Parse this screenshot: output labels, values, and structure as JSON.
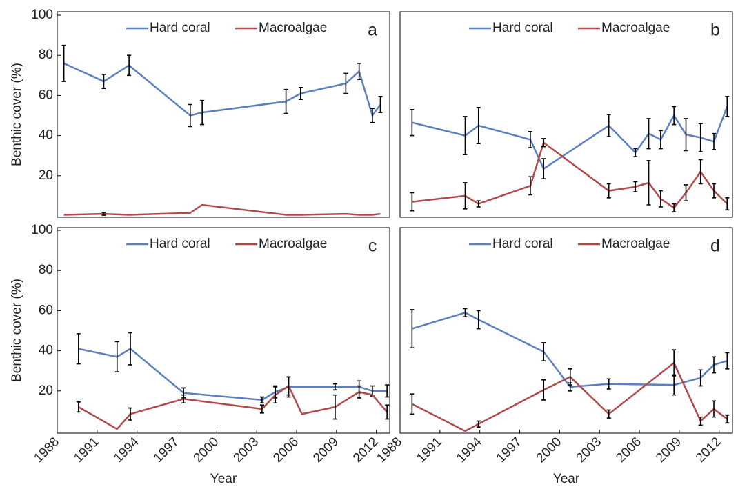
{
  "chart_data": [
    {
      "type": "line",
      "label": "a",
      "ylabel": "Benthic cover (%)",
      "xlim": [
        1988,
        2013
      ],
      "ylim": [
        0,
        100
      ],
      "yticks": [
        20,
        40,
        60,
        80,
        100
      ],
      "x": [
        1988.5,
        1991.5,
        1993.4,
        1998,
        1998.9,
        2005.2,
        2006.3,
        2009.7,
        2010.7,
        2011.7,
        2012.3
      ],
      "series": [
        {
          "name": "Hard coral",
          "color": "#5b7fbf",
          "values": [
            76,
            67,
            75,
            50,
            51.5,
            57,
            61,
            66,
            72,
            50,
            55.5
          ],
          "errors": [
            9,
            3.5,
            5,
            5.5,
            6,
            6,
            3,
            5,
            4,
            3.5,
            4
          ]
        },
        {
          "name": "Macroalgae",
          "color": "#b04a4a",
          "values": [
            0.5,
            1,
            0.5,
            1.5,
            5.5,
            0.5,
            0.5,
            1,
            0.5,
            0.5,
            1
          ],
          "errors": [
            null,
            0.7,
            null,
            null,
            null,
            null,
            null,
            null,
            null,
            null,
            null
          ]
        }
      ]
    },
    {
      "type": "line",
      "label": "b",
      "xlim": [
        1988,
        2013
      ],
      "ylim": [
        0,
        100
      ],
      "x": [
        1988.9,
        1992.9,
        1993.9,
        1997.8,
        1998.8,
        2003.7,
        2005.7,
        2006.7,
        2007.6,
        2008.6,
        2009.5,
        2010.6,
        2011.6,
        2012.6
      ],
      "series": [
        {
          "name": "Hard coral",
          "color": "#5b7fbf",
          "values": [
            46.5,
            40,
            45,
            38,
            23.5,
            45,
            31.5,
            41,
            38,
            50,
            40.5,
            39,
            37,
            54.5
          ],
          "errors": [
            6.5,
            9.5,
            9,
            4,
            5,
            5.5,
            2,
            7.5,
            4.5,
            4.5,
            8,
            7,
            4,
            5
          ]
        },
        {
          "name": "Macroalgae",
          "color": "#b04a4a",
          "values": [
            7,
            10,
            6,
            15,
            36.5,
            12.5,
            14.5,
            16.5,
            8.5,
            4,
            11.5,
            22,
            12.5,
            6
          ],
          "errors": [
            4.5,
            6.5,
            1.5,
            4.5,
            2,
            3.5,
            2.5,
            11,
            4,
            2,
            4,
            6,
            3.5,
            3
          ]
        }
      ]
    },
    {
      "type": "line",
      "label": "c",
      "ylabel": "Benthic cover (%)",
      "xlabel": "Year",
      "xlim": [
        1988,
        2013
      ],
      "ylim": [
        0,
        100
      ],
      "yticks": [
        20,
        40,
        60,
        80,
        100
      ],
      "xticks": [
        1988,
        1991,
        1994,
        1997,
        2000,
        2003,
        2006,
        2009,
        2012
      ],
      "series": [
        {
          "name": "Hard coral",
          "color": "#5b7fbf",
          "x": [
            1989.6,
            1992.5,
            1993.5,
            1997.5,
            2003.4,
            2004.4,
            2005.4,
            2008.9,
            2010.7,
            2011.7,
            2012.8
          ],
          "values": [
            41,
            37,
            41,
            19,
            15.5,
            19.5,
            22,
            22,
            22,
            20,
            20
          ],
          "errors": [
            7.5,
            7.5,
            8,
            2.5,
            1.5,
            3,
            5,
            1.5,
            3,
            2.5,
            3
          ]
        },
        {
          "name": "Macroalgae",
          "color": "#b04a4a",
          "x": [
            1989.6,
            1992.5,
            1993.5,
            1997.5,
            2003.4,
            2004.4,
            2005.4,
            2006.4,
            2008.9,
            2010.7,
            2011.7,
            2012.8
          ],
          "values": [
            12,
            1,
            8.5,
            16,
            11,
            18,
            22.5,
            8.5,
            12,
            19.5,
            18,
            9.5
          ],
          "errors": [
            2.5,
            null,
            3,
            2,
            2,
            4,
            4.5,
            null,
            6,
            3,
            null,
            3.5
          ]
        }
      ]
    },
    {
      "type": "line",
      "label": "d",
      "xlabel": "Year",
      "xlim": [
        1988,
        2013
      ],
      "ylim": [
        0,
        100
      ],
      "xticks": [
        1988,
        1991,
        1994,
        1997,
        2000,
        2003,
        2006,
        2009,
        2012
      ],
      "x": [
        1988.9,
        1992.9,
        1993.9,
        1998.8,
        2000.8,
        2003.7,
        2008.6,
        2010.6,
        2011.6,
        2012.6
      ],
      "series": [
        {
          "name": "Hard coral",
          "color": "#5b7fbf",
          "values": [
            51,
            59,
            55.5,
            39.5,
            22,
            23.5,
            23,
            26.5,
            33,
            35
          ],
          "errors": [
            9.5,
            2,
            4.5,
            4.5,
            2,
            2.5,
            5,
            4,
            4,
            4
          ]
        },
        {
          "name": "Macroalgae",
          "color": "#b04a4a",
          "values": [
            13.5,
            0,
            3.5,
            20.5,
            27,
            8.5,
            34,
            5,
            11,
            6
          ],
          "errors": [
            5,
            null,
            1.5,
            5,
            4,
            2,
            6.5,
            2,
            4,
            2
          ]
        }
      ]
    }
  ]
}
